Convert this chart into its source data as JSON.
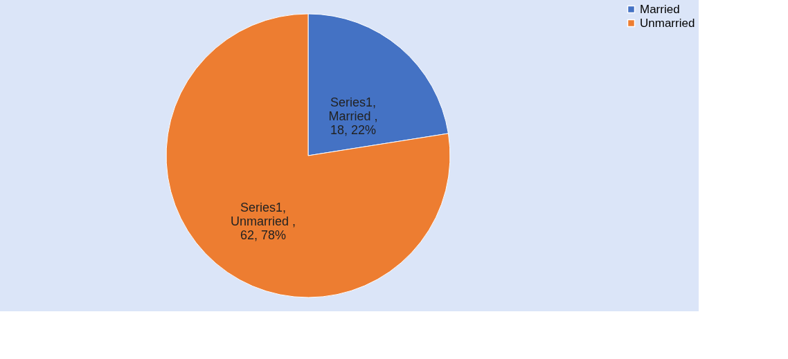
{
  "chart_data": {
    "type": "pie",
    "categories": [
      "Married",
      "Unmarried"
    ],
    "values": [
      18,
      62
    ],
    "colors": [
      "#4472c4",
      "#ed7d31"
    ],
    "value_labels": [
      "Series1, Married , 18, 22%",
      "Series1, Unmarried , 62, 78%"
    ],
    "legend": "right"
  }
}
